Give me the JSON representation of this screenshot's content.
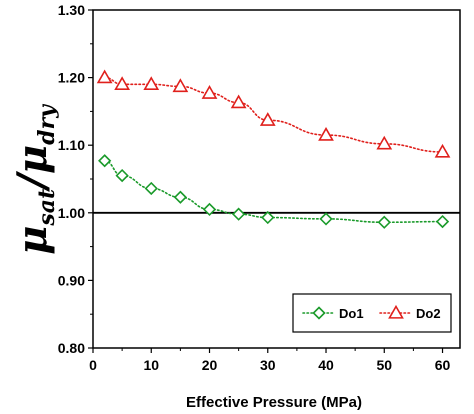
{
  "chart_data": {
    "type": "line",
    "xlabel": "Effective Pressure (MPa)",
    "ylabel": {
      "mu": "μ",
      "sat": "sat",
      "slash": "/",
      "dry": "dry"
    },
    "xlim": [
      0,
      63
    ],
    "ylim": [
      0.8,
      1.3
    ],
    "x_ticks": [
      "0",
      "10",
      "20",
      "30",
      "40",
      "50",
      "60"
    ],
    "y_ticks": [
      "1.30",
      "1.20",
      "1.10",
      "1.00",
      "0.90",
      "0.80"
    ],
    "reference_line": 1.0,
    "legend_position": "bottom-right",
    "series": [
      {
        "name": "Do1",
        "color": "#1a9a2a",
        "marker": "diamond",
        "line_style": "dotted",
        "x": [
          2,
          5,
          10,
          15,
          20,
          25,
          30,
          40,
          50,
          60
        ],
        "y": [
          1.077,
          1.055,
          1.036,
          1.023,
          1.005,
          0.998,
          0.993,
          0.991,
          0.986,
          0.987
        ]
      },
      {
        "name": "Do2",
        "color": "#e0201c",
        "marker": "triangle",
        "line_style": "dotted",
        "x": [
          2,
          5,
          10,
          15,
          20,
          25,
          30,
          40,
          50,
          60
        ],
        "y": [
          1.2,
          1.19,
          1.19,
          1.187,
          1.177,
          1.163,
          1.137,
          1.115,
          1.102,
          1.09
        ]
      }
    ]
  }
}
